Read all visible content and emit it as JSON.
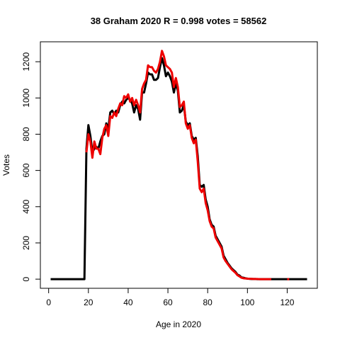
{
  "chart_data": {
    "type": "line",
    "title": "38 Graham 2020 R = 0.998 votes = 58562",
    "x_label": "Age in 2020",
    "y_label": "Votes",
    "x": [
      1,
      2,
      3,
      4,
      5,
      6,
      7,
      8,
      9,
      10,
      11,
      12,
      13,
      14,
      15,
      16,
      17,
      18,
      19,
      20,
      21,
      22,
      23,
      24,
      25,
      26,
      27,
      28,
      29,
      30,
      31,
      32,
      33,
      34,
      35,
      36,
      37,
      38,
      39,
      40,
      41,
      42,
      43,
      44,
      45,
      46,
      47,
      48,
      49,
      50,
      51,
      52,
      53,
      54,
      55,
      56,
      57,
      58,
      59,
      60,
      61,
      62,
      63,
      64,
      65,
      66,
      67,
      68,
      69,
      70,
      71,
      72,
      73,
      74,
      75,
      76,
      77,
      78,
      79,
      80,
      81,
      82,
      83,
      84,
      85,
      86,
      87,
      88,
      89,
      90,
      91,
      92,
      93,
      94,
      95,
      96,
      97,
      98,
      99,
      100,
      101,
      102,
      103,
      104,
      105,
      106,
      107,
      108,
      109,
      110,
      111,
      112,
      113,
      114,
      115,
      116,
      117,
      118,
      119,
      120,
      121,
      122,
      123,
      124,
      125,
      126,
      127,
      128,
      129,
      130
    ],
    "series": [
      {
        "color": "#000000",
        "values": [
          0,
          0,
          0,
          0,
          0,
          0,
          0,
          0,
          0,
          0,
          0,
          0,
          0,
          0,
          0,
          0,
          0,
          0,
          720,
          850,
          790,
          700,
          720,
          730,
          720,
          760,
          790,
          800,
          860,
          830,
          920,
          930,
          910,
          930,
          920,
          960,
          980,
          970,
          990,
          1000,
          990,
          970,
          920,
          960,
          940,
          880,
          1030,
          1030,
          1080,
          1140,
          1130,
          1130,
          1100,
          1100,
          1110,
          1170,
          1220,
          1180,
          1120,
          1140,
          1120,
          1090,
          1030,
          1080,
          1040,
          920,
          930,
          960,
          870,
          850,
          860,
          790,
          770,
          780,
          680,
          520,
          510,
          520,
          440,
          400,
          330,
          300,
          290,
          240,
          220,
          200,
          180,
          130,
          110,
          90,
          75,
          60,
          50,
          40,
          25,
          20,
          10,
          8,
          5,
          3,
          2,
          1,
          1,
          1,
          0,
          0,
          0,
          0,
          0,
          0,
          0,
          0,
          0,
          0,
          0,
          0,
          0,
          0,
          0,
          0,
          0,
          0,
          0,
          0,
          0,
          0,
          0,
          0,
          0,
          0
        ]
      },
      {
        "color": "#ee0000",
        "values": [
          null,
          null,
          null,
          null,
          null,
          null,
          null,
          null,
          null,
          null,
          null,
          null,
          null,
          null,
          null,
          null,
          null,
          null,
          700,
          800,
          760,
          670,
          760,
          720,
          720,
          690,
          780,
          830,
          850,
          790,
          900,
          890,
          920,
          900,
          940,
          970,
          960,
          1010,
          1000,
          1020,
          980,
          1000,
          960,
          990,
          960,
          920,
          1050,
          1080,
          1100,
          1180,
          1170,
          1170,
          1150,
          1140,
          1160,
          1200,
          1260,
          1230,
          1180,
          1170,
          1160,
          1140,
          1060,
          1110,
          1060,
          950,
          960,
          980,
          860,
          830,
          850,
          780,
          750,
          770,
          650,
          500,
          480,
          500,
          420,
          380,
          320,
          290,
          280,
          230,
          210,
          190,
          170,
          120,
          100,
          85,
          70,
          55,
          45,
          35,
          22,
          15,
          8,
          5,
          4,
          3,
          2,
          2,
          1,
          1,
          1,
          0,
          0,
          0,
          0,
          0,
          0,
          0,
          null,
          null,
          null,
          null,
          null,
          null,
          null,
          0,
          0,
          null,
          null,
          null,
          null,
          null,
          null,
          null,
          null,
          null
        ]
      }
    ],
    "xlim": [
      -4.16,
      135.16
    ],
    "xticks": [
      0,
      20,
      40,
      60,
      80,
      100,
      120
    ],
    "ylim": [
      -50.4,
      1310
    ],
    "yticks": [
      0,
      200,
      400,
      600,
      800,
      1000,
      1200
    ]
  }
}
